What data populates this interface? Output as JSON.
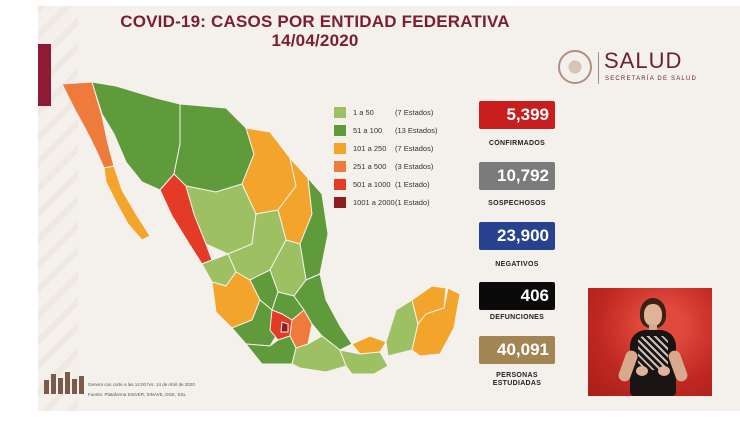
{
  "header": {
    "title_line1": "COVID-19: CASOS POR ENTIDAD FEDERATIVA",
    "title_line2": "14/04/2020"
  },
  "logo": {
    "name": "SALUD",
    "subtitle": "SECRETARÍA DE SALUD"
  },
  "colors": {
    "title": "#7d1d2e",
    "level1": "#9dc062",
    "level2": "#5f9a3b",
    "level3": "#f3a42b",
    "level4": "#ee7b3c",
    "level5": "#e43a26",
    "level6": "#8e1d1d"
  },
  "legend": [
    {
      "range": "1 a 50",
      "count": "(7 Estados)",
      "color": "#9dc062"
    },
    {
      "range": "51 a 100",
      "count": "(13 Estados)",
      "color": "#5f9a3b"
    },
    {
      "range": "101 a 250",
      "count": "(7 Estados)",
      "color": "#f3a42b"
    },
    {
      "range": "251 a 500",
      "count": "(3 Estados)",
      "color": "#ee7b3c"
    },
    {
      "range": "501 a 1000",
      "count": "(1 Estado)",
      "color": "#e43a26"
    },
    {
      "range": "1001 a 2000",
      "count": "(1 Estado)",
      "color": "#8e1d1d"
    }
  ],
  "stats": [
    {
      "value": "5,399",
      "label": "CONFIRMADOS",
      "color": "#c81e1e"
    },
    {
      "value": "10,792",
      "label": "SOSPECHOSOS",
      "color": "#7b7b7b"
    },
    {
      "value": "23,900",
      "label": "NEGATIVOS",
      "color": "#27428f"
    },
    {
      "value": "406",
      "label": "DEFUNCIONES",
      "color": "#0a0a0a"
    },
    {
      "value": "40,091",
      "label": "PERSONAS ESTUDIADAS",
      "color": "#a38554"
    }
  ],
  "footer": {
    "line1": "Genera con corte a las 14:00 hrs. 14 de Abril de 2020",
    "line2": "Fuente: Plataforma SISVER, SINAVE, DGE, SSL"
  }
}
